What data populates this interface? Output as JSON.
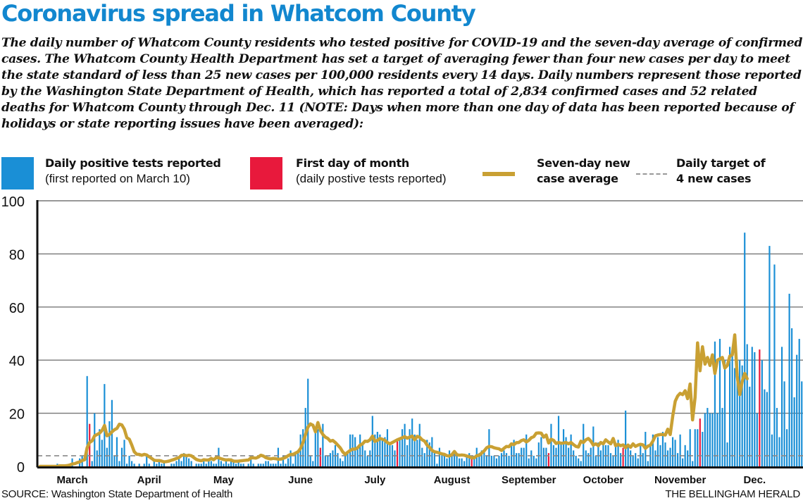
{
  "header": {
    "title": "Coronavirus spread in Whatcom County",
    "intro": "The daily number of Whatcom County residents who tested positive for COVID-19 and the seven-day average of confirmed cases. The Whatcom County Health Department has set a target of averaging fewer than four new cases per day to meet the state standard of less than 25 new cases per 100,000 residents every 14 days. Daily numbers represent those reported by the Washington State Department of Health, which has reported a total of 2,834 confirmed cases and 52 related deaths for Whatcom County through Dec. 11 (NOTE: Days when more than one day of data has been reported because of holidays or state reporting issues have been averaged):"
  },
  "legend": [
    {
      "key": "daily",
      "title": "Daily positive tests reported",
      "sub": "(first reported on March 10)",
      "color": "#1a8fd6",
      "kind": "swatch"
    },
    {
      "key": "first",
      "title": "First day of month",
      "sub": "(daily postive tests reported)",
      "color": "#e8193c",
      "kind": "swatch"
    },
    {
      "key": "avg",
      "title": "Seven-day new",
      "sub": "case average",
      "color": "#c9a033",
      "kind": "line"
    },
    {
      "key": "target",
      "title": "Daily target of",
      "sub": "4 new cases",
      "color": "#999999",
      "kind": "dash"
    }
  ],
  "footer": {
    "source": "SOURCE: Washington State Department of Health",
    "credit": "THE BELLINGHAM HERALD"
  },
  "chart_data": {
    "type": "bar",
    "title": "Coronavirus spread in Whatcom County",
    "xlabel": "",
    "ylabel": "",
    "ylim": [
      0,
      100
    ],
    "yticks": [
      0,
      20,
      40,
      60,
      80,
      100
    ],
    "grid": true,
    "target_line": 4,
    "x_start_day": "Feb 24",
    "month_labels": [
      {
        "label": "March",
        "day_index": 13
      },
      {
        "label": "April",
        "day_index": 44
      },
      {
        "label": "May",
        "day_index": 74
      },
      {
        "label": "June",
        "day_index": 105
      },
      {
        "label": "July",
        "day_index": 135
      },
      {
        "label": "August",
        "day_index": 166
      },
      {
        "label": "September",
        "day_index": 197
      },
      {
        "label": "October",
        "day_index": 227
      },
      {
        "label": "November",
        "day_index": 258
      },
      {
        "label": "Dec.",
        "day_index": 288
      }
    ],
    "first_of_month_indices": [
      20,
      52,
      83,
      113,
      144,
      174,
      205,
      235,
      266,
      290
    ],
    "colors": {
      "bar": "#1a8fd6",
      "first_of_month": "#e8193c",
      "average": "#c9a033",
      "target": "#888888",
      "grid": "#777777"
    },
    "series": [
      {
        "name": "Daily positive tests reported",
        "values": [
          0,
          0,
          0,
          0,
          0,
          0,
          0,
          1,
          0,
          0,
          0,
          0,
          0,
          3,
          0,
          0,
          3,
          4,
          0,
          34,
          16,
          2,
          20,
          6,
          14,
          10,
          31,
          7,
          17,
          25,
          4,
          11,
          2,
          7,
          10,
          1,
          4,
          2,
          1,
          0,
          1,
          0,
          1,
          4,
          1,
          0,
          2,
          1,
          2,
          1,
          2,
          0,
          0,
          1,
          1,
          2,
          3,
          2,
          5,
          4,
          3,
          2,
          0,
          1,
          1,
          1,
          2,
          1,
          3,
          2,
          1,
          1,
          7,
          2,
          1,
          3,
          1,
          3,
          2,
          1,
          2,
          1,
          1,
          0,
          1,
          4,
          1,
          0,
          1,
          1,
          1,
          2,
          2,
          1,
          1,
          1,
          7,
          1,
          4,
          1,
          3,
          6,
          1,
          5,
          6,
          12,
          14,
          22,
          33,
          4,
          2,
          15,
          14,
          7,
          16,
          4,
          4,
          5,
          6,
          8,
          5,
          3,
          2,
          5,
          5,
          12,
          12,
          11,
          7,
          12,
          8,
          6,
          4,
          6,
          19,
          12,
          13,
          12,
          10,
          11,
          14,
          9,
          8,
          6,
          10,
          10,
          14,
          16,
          8,
          14,
          18,
          12,
          10,
          16,
          7,
          5,
          10,
          9,
          11,
          5,
          1,
          7,
          5,
          4,
          3,
          6,
          5,
          5,
          4,
          3,
          3,
          2,
          4,
          5,
          3,
          4,
          7,
          5,
          6,
          6,
          4,
          14,
          4,
          4,
          3,
          4,
          5,
          6,
          5,
          4,
          8,
          10,
          5,
          5,
          7,
          7,
          12,
          3,
          6,
          4,
          3,
          9,
          11,
          7,
          7,
          5,
          16,
          8,
          7,
          19,
          9,
          14,
          11,
          7,
          12,
          6,
          4,
          3,
          2,
          16,
          6,
          5,
          7,
          15,
          4,
          9,
          6,
          8,
          8,
          8,
          5,
          4,
          9,
          10,
          5,
          7,
          21,
          8,
          6,
          4,
          5,
          3,
          8,
          5,
          13,
          2,
          8,
          12,
          6,
          11,
          8,
          13,
          9,
          6,
          7,
          11,
          10,
          5,
          12,
          3,
          8,
          6,
          14,
          2,
          14,
          14,
          18,
          13,
          20,
          22,
          20,
          20,
          47,
          20,
          48,
          22,
          40,
          9,
          45,
          42,
          37,
          40,
          40,
          38,
          88,
          46,
          30,
          45,
          43,
          20,
          44,
          40,
          29,
          28,
          83,
          12,
          76,
          22,
          11,
          45,
          32,
          14,
          65,
          52,
          26,
          42,
          48,
          32
        ],
        "first_of_month_value_note": "bars at first_of_month_indices drawn in red"
      },
      {
        "name": "Seven-day new case average",
        "values": [
          0,
          0,
          0,
          0,
          0,
          0,
          0,
          0,
          0.2,
          0.2,
          0.2,
          0.3,
          0.5,
          0.9,
          1.0,
          1.4,
          1.7,
          2.2,
          2.5,
          7.0,
          9.0,
          9.6,
          11.5,
          12.0,
          12.5,
          13.5,
          15.4,
          11.5,
          12.0,
          13.0,
          13.8,
          14.3,
          15.9,
          15.6,
          14.0,
          10.8,
          10.2,
          8.0,
          5.5,
          4.6,
          4.5,
          4.2,
          4.5,
          4.3,
          3.6,
          3.0,
          2.3,
          2.2,
          2.2,
          2.0,
          1.7,
          1.8,
          2.0,
          2.3,
          2.6,
          3.0,
          3.3,
          4.1,
          4.3,
          4.0,
          4.2,
          4.0,
          3.3,
          2.6,
          2.3,
          2.1,
          2.5,
          2.4,
          2.4,
          3.0,
          2.5,
          3.3,
          3.2,
          2.9,
          2.6,
          2.4,
          2.5,
          2.4,
          2.0,
          1.9,
          2.0,
          2.1,
          2.2,
          2.3,
          2.4,
          3.2,
          3.2,
          3.1,
          3.5,
          4.2,
          3.9,
          3.3,
          3.0,
          2.8,
          3.0,
          2.9,
          2.7,
          2.7,
          3.0,
          3.4,
          4.0,
          4.5,
          4.5,
          5.0,
          5.5,
          6.7,
          9.0,
          12.0,
          14.8,
          16.0,
          15.5,
          13.0,
          16.5,
          13.5,
          12.0,
          11.0,
          10.5,
          9.5,
          9.8,
          9.0,
          8.0,
          7.0,
          5.5,
          4.5,
          5.3,
          6.0,
          6.5,
          6.5,
          7.0,
          8.0,
          8.5,
          9.5,
          9.4,
          10.0,
          11.4,
          9.4,
          9.8,
          10.5,
          10.2,
          9.8,
          9.0,
          8.5,
          9.0,
          9.5,
          10.0,
          10.4,
          10.8,
          11.2,
          10.6,
          11.0,
          11.4,
          10.0,
          11.3,
          11.0,
          10.0,
          9.5,
          8.0,
          7.2,
          6.0,
          5.5,
          5.3,
          5.0,
          4.7,
          4.5,
          4.0,
          3.9,
          4.4,
          5.6,
          4.4,
          4.2,
          4.3,
          4.2,
          3.9,
          3.6,
          3.2,
          3.2,
          4.0,
          4.2,
          5.0,
          5.8,
          7.0,
          7.5,
          7.4,
          7.0,
          6.8,
          6.6,
          6.0,
          6.8,
          7.5,
          7.4,
          8.5,
          8.2,
          8.9,
          9.0,
          9.7,
          10.0,
          9.2,
          9.8,
          10.8,
          11.2,
          12.5,
          12.6,
          12.5,
          11.0,
          11.8,
          8.8,
          10.2,
          9.8,
          8.6,
          9.0,
          8.7,
          8.8,
          9.0,
          8.5,
          9.0,
          8.2,
          7.5,
          7.3,
          9.5,
          9.0,
          10.0,
          10.5,
          9.5,
          8.0,
          8.5,
          7.8,
          9.0,
          8.5,
          10.0,
          9.2,
          8.5,
          10.5,
          7.8,
          8.3,
          7.8,
          8.1,
          7.0,
          8.0,
          7.2,
          8.5,
          7.5,
          8.0,
          8.3,
          8.1,
          6.8,
          7.6,
          8.0,
          9.5,
          11.5,
          11.8,
          12.0,
          12.0,
          11.8,
          14.0,
          12.0,
          19.0,
          24.5,
          26.5,
          27.5,
          27.0,
          28.5,
          25.5,
          31.0,
          17.5,
          26.0,
          46.5,
          36.0,
          45.0,
          38.5,
          41.0,
          38.0,
          42.0,
          35.0,
          40.0,
          40.5,
          41.0,
          37.0,
          38.0,
          41.5,
          42.0,
          49.5,
          34.0,
          27.0,
          32.0,
          35.0,
          33.0
        ]
      }
    ]
  }
}
